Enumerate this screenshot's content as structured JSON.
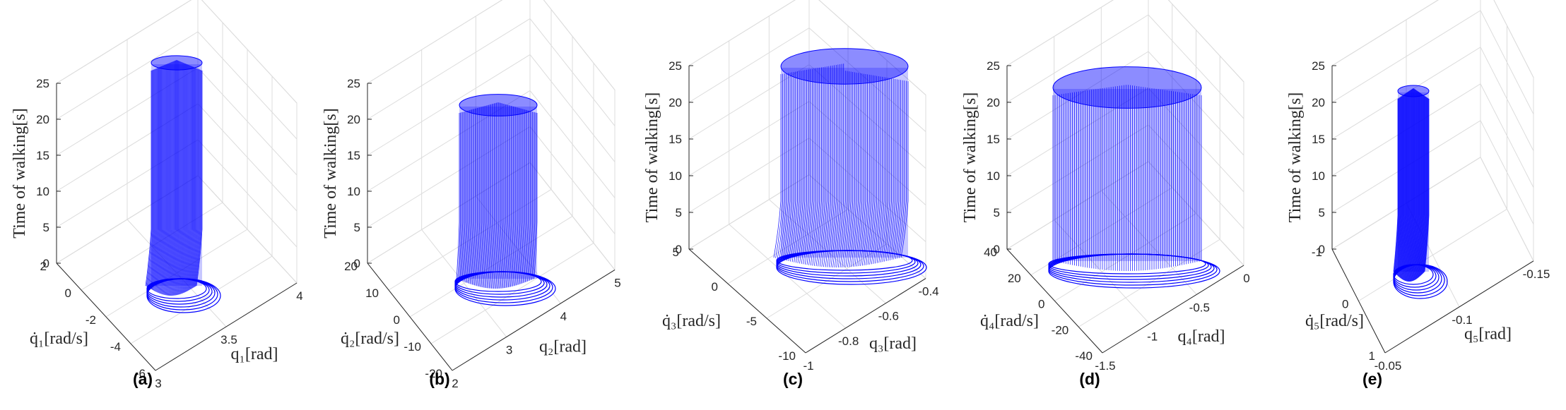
{
  "chart_data": [
    {
      "type": "surface",
      "panel_label": "(a)",
      "zlabel": "Time of walking[s]",
      "xlabel": "q₁[rad]",
      "ylabel": "q̇₁[rad/s]",
      "zticks": [
        "0",
        "5",
        "10",
        "15",
        "20",
        "25"
      ],
      "xticks": [
        "3",
        "3.5",
        "4"
      ],
      "yticks": [
        "2",
        "0",
        "-2",
        "-4",
        "-6"
      ],
      "zlim": [
        0,
        25
      ],
      "xlim": [
        3,
        4
      ],
      "ylim": [
        -6,
        2
      ],
      "series_color": "#0000ff",
      "grid": true
    },
    {
      "type": "surface",
      "panel_label": "(b)",
      "zlabel": "Time of walking[s]",
      "xlabel": "q₂[rad]",
      "ylabel": "q̇₂[rad/s]",
      "zticks": [
        "0",
        "5",
        "10",
        "15",
        "20",
        "25"
      ],
      "xticks": [
        "2",
        "3",
        "4",
        "5"
      ],
      "yticks": [
        "20",
        "10",
        "0",
        "-10",
        "-20"
      ],
      "zlim": [
        0,
        25
      ],
      "xlim": [
        2,
        5
      ],
      "ylim": [
        -20,
        20
      ],
      "series_color": "#0000ff",
      "grid": true
    },
    {
      "type": "surface",
      "panel_label": "(c)",
      "zlabel": "Time of walking[s]",
      "xlabel": "q₃[rad]",
      "ylabel": "q̇₃[rad/s]",
      "zticks": [
        "0",
        "5",
        "10",
        "15",
        "20",
        "25"
      ],
      "xticks": [
        "-1",
        "-0.8",
        "-0.6",
        "-0.4"
      ],
      "yticks": [
        "5",
        "0",
        "-5",
        "-10"
      ],
      "zlim": [
        0,
        25
      ],
      "xlim": [
        -1,
        -0.4
      ],
      "ylim": [
        -10,
        5
      ],
      "series_color": "#0000ff",
      "grid": true
    },
    {
      "type": "surface",
      "panel_label": "(d)",
      "zlabel": "Time of walking[s]",
      "xlabel": "q₄[rad]",
      "ylabel": "q̇₄[rad/s]",
      "zticks": [
        "0",
        "5",
        "10",
        "15",
        "20",
        "25"
      ],
      "xticks": [
        "-1.5",
        "-1",
        "-0.5",
        "0"
      ],
      "yticks": [
        "40",
        "20",
        "0",
        "-20",
        "-40"
      ],
      "zlim": [
        0,
        25
      ],
      "xlim": [
        -1.5,
        0
      ],
      "ylim": [
        -40,
        40
      ],
      "series_color": "#0000ff",
      "grid": true
    },
    {
      "type": "surface",
      "panel_label": "(e)",
      "zlabel": "Time of walking[s]",
      "xlabel": "q₅[rad]",
      "ylabel": "q̇₅[rad/s]",
      "zticks": [
        "0",
        "5",
        "10",
        "15",
        "20",
        "25"
      ],
      "xticks": [
        "-0.05",
        "-0.1",
        "-0.15"
      ],
      "yticks": [
        "-1",
        "0",
        "1"
      ],
      "zlim": [
        0,
        25
      ],
      "xlim": [
        -0.15,
        -0.05
      ],
      "ylim": [
        -1,
        1
      ],
      "series_color": "#0000ff",
      "grid": true
    }
  ]
}
